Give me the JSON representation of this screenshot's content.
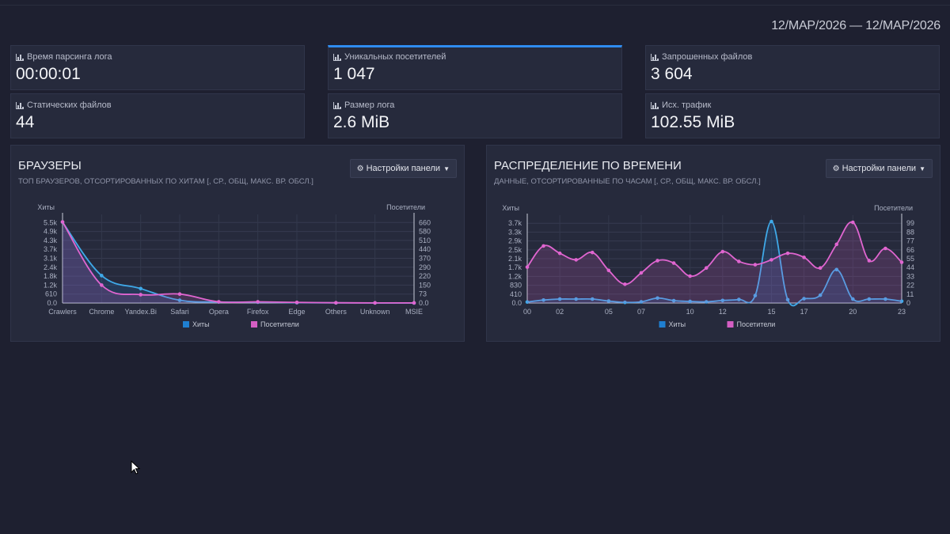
{
  "date_range": "12/MAP/2026 — 12/MAP/2026",
  "stats": [
    {
      "label": "Время парсинга лога",
      "value": "00:00:01",
      "icon": "bar-chart-icon"
    },
    {
      "label": "Уникальных посетителей",
      "value": "1 047",
      "icon": "bar-chart-icon",
      "active": true
    },
    {
      "label": "Запрошенных файлов",
      "value": "3 604",
      "icon": "bar-chart-icon"
    },
    {
      "label": "Статических файлов",
      "value": "44",
      "icon": "bar-chart-icon"
    },
    {
      "label": "Размер лога",
      "value": "2.6 MiB",
      "icon": "bar-chart-icon"
    },
    {
      "label": "Исх. трафик",
      "value": "102.55 MiB",
      "icon": "bar-chart-icon"
    }
  ],
  "colors": {
    "hits": "#1f7fd0",
    "visitors": "#d45ec3",
    "hits_line": "#3fa9e8",
    "visitors_line": "#e065d0"
  },
  "panels": {
    "browsers": {
      "title": "БРАУЗЕРЫ",
      "subtitle": "ТОП БРАУЗЕРОВ, ОТСОРТИРОВАННЫХ ПО ХИТАМ [, СР., ОБЩ, МАКС. ВР. ОБСЛ.]",
      "settings_label": "Настройки панели"
    },
    "time": {
      "title": "РАСПРЕДЕЛЕНИЕ ПО ВРЕМЕНИ",
      "subtitle": "ДАННЫЕ, ОТСОРТИРОВАННЫЕ ПО ЧАСАМ [, СР., ОБЩ, МАКС. ВР. ОБСЛ.]",
      "settings_label": "Настройки панели"
    }
  },
  "chart_data": [
    {
      "type": "line",
      "categories": [
        "Crawlers",
        "Chrome",
        "Yandex.Bi",
        "Safari",
        "Opera",
        "Firefox",
        "Edge",
        "Others",
        "Unknown",
        "MSIE"
      ],
      "series": [
        {
          "name": "Хиты",
          "axis": "left",
          "values": [
            5900,
            2000,
            1050,
            200,
            70,
            60,
            25,
            10,
            5,
            3
          ]
        },
        {
          "name": "Посетители",
          "axis": "right",
          "values": [
            680,
            150,
            70,
            75,
            10,
            10,
            5,
            2,
            1,
            1
          ]
        }
      ],
      "ylabel": "Хиты",
      "ylabel_right": "Посетители",
      "ylim": [
        0,
        6000
      ],
      "ylim_right": [
        0,
        690
      ],
      "yticks": [
        "0.0",
        "610",
        "1.2k",
        "1.8k",
        "2.4k",
        "3.1k",
        "3.7k",
        "4.3k",
        "4.9k",
        "5.5k"
      ],
      "yticks_right": [
        "0.0",
        "73",
        "150",
        "220",
        "290",
        "370",
        "440",
        "510",
        "580",
        "660"
      ],
      "legend": "bottom"
    },
    {
      "type": "line",
      "x": [
        "00",
        "01",
        "02",
        "03",
        "04",
        "05",
        "06",
        "07",
        "08",
        "09",
        "10",
        "11",
        "12",
        "13",
        "14",
        "15",
        "16",
        "17",
        "18",
        "19",
        "20",
        "21",
        "22",
        "23"
      ],
      "xtick_labels": [
        "00",
        "02",
        "05",
        "07",
        "10",
        "12",
        "15",
        "17",
        "20",
        "23"
      ],
      "series": [
        {
          "name": "Хиты",
          "axis": "left",
          "values": [
            50,
            150,
            200,
            200,
            200,
            100,
            30,
            60,
            250,
            120,
            80,
            60,
            130,
            180,
            380,
            4150,
            170,
            220,
            400,
            1700,
            200,
            200,
            200,
            90
          ]
        },
        {
          "name": "Посетители",
          "axis": "right",
          "values": [
            44,
            70,
            61,
            53,
            62,
            40,
            23,
            37,
            52,
            49,
            33,
            43,
            63,
            51,
            47,
            53,
            61,
            56,
            43,
            72,
            99,
            52,
            67,
            50
          ]
        }
      ],
      "ylabel": "Хиты",
      "ylabel_right": "Посетители",
      "ylim": [
        0,
        4150
      ],
      "ylim_right": [
        0,
        100
      ],
      "yticks": [
        "0.0",
        "410",
        "830",
        "1.2k",
        "1.7k",
        "2.1k",
        "2.5k",
        "2.9k",
        "3.3k",
        "3.7k"
      ],
      "yticks_right": [
        "0",
        "11",
        "22",
        "33",
        "44",
        "55",
        "66",
        "77",
        "88",
        "99"
      ],
      "legend": "bottom"
    }
  ]
}
